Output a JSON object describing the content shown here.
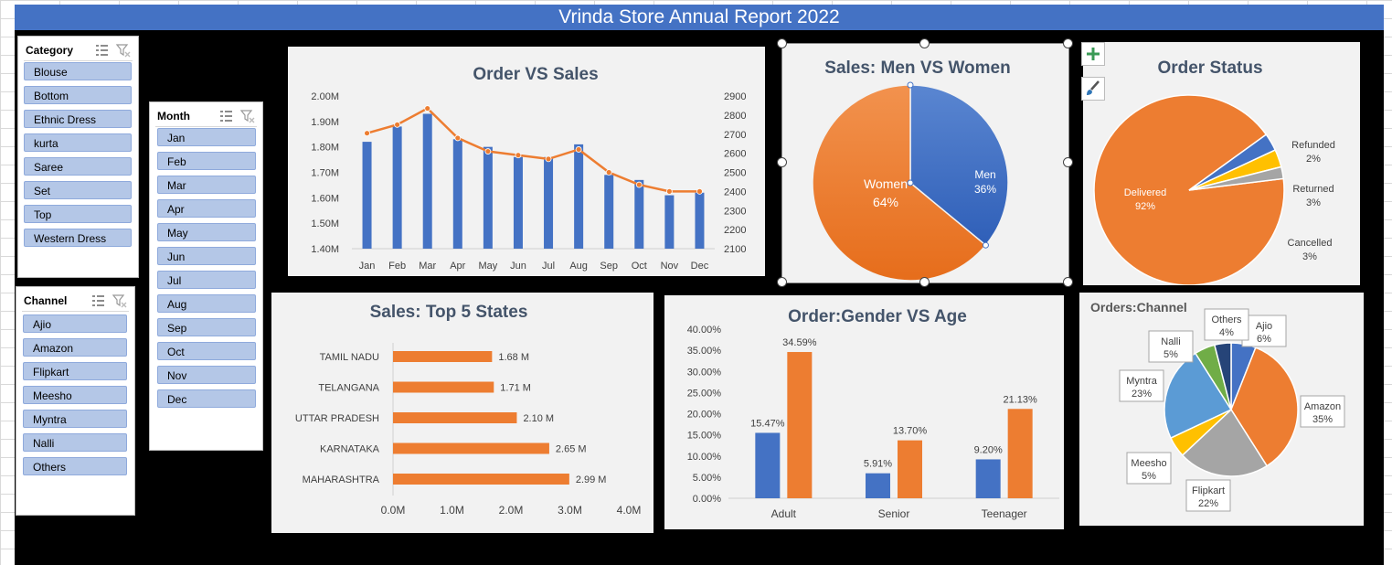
{
  "title": "Vrinda Store Annual Report 2022",
  "slicers": {
    "category": {
      "title": "Category",
      "items": [
        "Blouse",
        "Bottom",
        "Ethnic Dress",
        "kurta",
        "Saree",
        "Set",
        "Top",
        "Western Dress"
      ]
    },
    "month": {
      "title": "Month",
      "items": [
        "Jan",
        "Feb",
        "Mar",
        "Apr",
        "May",
        "Jun",
        "Jul",
        "Aug",
        "Sep",
        "Oct",
        "Nov",
        "Dec"
      ]
    },
    "channel": {
      "title": "Channel",
      "items": [
        "Ajio",
        "Amazon",
        "Flipkart",
        "Meesho",
        "Myntra",
        "Nalli",
        "Others"
      ]
    }
  },
  "colors": {
    "blue": "#4472c4",
    "orange": "#ed7d31",
    "gray": "#a5a5a5",
    "yellow": "#ffc000",
    "lightblue": "#5b9bd5",
    "green": "#70ad47",
    "navy": "#264478"
  },
  "icons": [
    "multi-select-icon",
    "clear-filter-icon",
    "plus-icon",
    "brush-icon"
  ],
  "chart_data": [
    {
      "type": "bar",
      "title": "Order VS Sales",
      "categories": [
        "Jan",
        "Feb",
        "Mar",
        "Apr",
        "May",
        "Jun",
        "Jul",
        "Aug",
        "Sep",
        "Oct",
        "Nov",
        "Dec"
      ],
      "series": [
        {
          "type": "bar",
          "axis": "left",
          "values": [
            1.82,
            1.88,
            1.93,
            1.83,
            1.8,
            1.76,
            1.76,
            1.81,
            1.69,
            1.67,
            1.61,
            1.62
          ]
        },
        {
          "type": "line",
          "axis": "right",
          "values": [
            2705,
            2750,
            2835,
            2680,
            2610,
            2590,
            2570,
            2620,
            2500,
            2435,
            2400,
            2400
          ]
        }
      ],
      "yleft": {
        "ylim": [
          1.4,
          2.0
        ],
        "ticks": [
          "1.40M",
          "1.50M",
          "1.60M",
          "1.70M",
          "1.80M",
          "1.90M",
          "2.00M"
        ]
      },
      "yright": {
        "ylim": [
          2100,
          2900
        ],
        "ticks": [
          "2100",
          "2200",
          "2300",
          "2400",
          "2500",
          "2600",
          "2700",
          "2800",
          "2900"
        ]
      }
    },
    {
      "type": "pie",
      "title": "Sales: Men VS Women",
      "labels": [
        "Men",
        "Women"
      ],
      "values": [
        36,
        64
      ],
      "value_labels": [
        "36%",
        "64%"
      ]
    },
    {
      "type": "pie",
      "title": "Order Status",
      "labels": [
        "Delivered",
        "Refunded",
        "Returned",
        "Cancelled"
      ],
      "values": [
        92,
        2,
        3,
        3
      ],
      "value_labels": [
        "92%",
        "2%",
        "3%",
        "3%"
      ]
    },
    {
      "type": "bar",
      "orientation": "horizontal",
      "title": "Sales: Top 5 States",
      "categories": [
        "TAMIL NADU",
        "TELANGANA",
        "UTTAR PRADESH",
        "KARNATAKA",
        "MAHARASHTRA"
      ],
      "values": [
        1.68,
        1.71,
        2.1,
        2.65,
        2.99
      ],
      "value_labels": [
        "1.68 M",
        "1.71 M",
        "2.10 M",
        "2.65 M",
        "2.99 M"
      ],
      "xlim": [
        0,
        4
      ],
      "xticks": [
        "0.0M",
        "1.0M",
        "2.0M",
        "3.0M",
        "4.0M"
      ]
    },
    {
      "type": "bar",
      "title": "Order:Gender VS Age",
      "categories": [
        "Adult",
        "Senior",
        "Teenager"
      ],
      "series": [
        {
          "values": [
            15.47,
            5.91,
            9.2
          ],
          "value_labels": [
            "15.47%",
            "5.91%",
            "9.20%"
          ]
        },
        {
          "values": [
            34.59,
            13.7,
            21.13
          ],
          "value_labels": [
            "34.59%",
            "13.70%",
            "21.13%"
          ]
        }
      ],
      "ylim": [
        0,
        40
      ],
      "yticks": [
        "0.00%",
        "5.00%",
        "10.00%",
        "15.00%",
        "20.00%",
        "25.00%",
        "30.00%",
        "35.00%",
        "40.00%"
      ]
    },
    {
      "type": "pie",
      "title": "Orders:Channel",
      "labels": [
        "Ajio",
        "Amazon",
        "Flipkart",
        "Meesho",
        "Myntra",
        "Nalli",
        "Others"
      ],
      "values": [
        6,
        35,
        22,
        5,
        23,
        5,
        4
      ],
      "value_labels": [
        "6%",
        "35%",
        "22%",
        "5%",
        "23%",
        "5%",
        "4%"
      ]
    }
  ]
}
